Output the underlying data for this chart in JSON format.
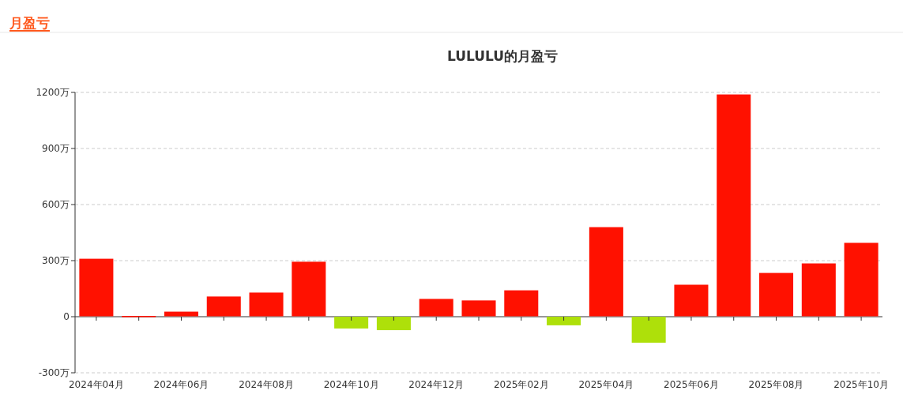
{
  "chart_data": {
    "type": "bar",
    "title": "LULULU的月盈亏",
    "subtitle": "月盈亏",
    "categories": [
      "2024年04月",
      null,
      "2024年06月",
      null,
      "2024年08月",
      null,
      "2024年10月",
      null,
      "2024年12月",
      null,
      "2025年02月",
      null,
      "2025年04月",
      null,
      "2025年06月",
      null,
      "2025年08月",
      null,
      "2025年10月"
    ],
    "values": [
      308,
      2,
      25,
      106,
      127,
      292,
      -63,
      -72,
      93,
      85,
      139,
      -46,
      477,
      -139,
      169,
      1187,
      232,
      283,
      393
    ],
    "colors": [
      "#ff1100",
      "#ff1100",
      "#ff1100",
      "#ff1100",
      "#ff1100",
      "#ff1100",
      "#aee00a",
      "#aee00a",
      "#ff1100",
      "#ff1100",
      "#ff1100",
      "#aee00a",
      "#ff1100",
      "#aee00a",
      "#ff1100",
      "#ff1100",
      "#ff1100",
      "#ff1100",
      "#ff1100"
    ],
    "ylim": [
      -300,
      1200
    ],
    "yticks": [
      {
        "value": -300,
        "label": "-300万"
      },
      {
        "value": 0,
        "label": "0"
      },
      {
        "value": 300,
        "label": "300万"
      },
      {
        "value": 600,
        "label": "600万"
      },
      {
        "value": 900,
        "label": "900万"
      },
      {
        "value": 1200,
        "label": "1200万"
      }
    ],
    "grid": "y"
  }
}
